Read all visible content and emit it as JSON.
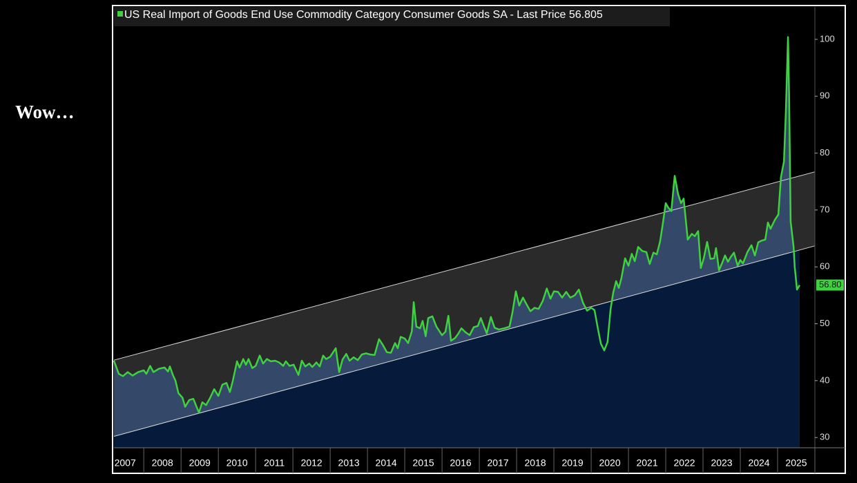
{
  "annotation": "Wow…",
  "chart_data": {
    "type": "line",
    "title": "US Real Import of Goods End Use Commodity Category Consumer Goods SA - Last Price 56.805",
    "xlim": [
      2007.2,
      2026
    ],
    "xticks": [
      {
        "value": 2007.5,
        "label": "2007"
      },
      {
        "value": 2008.5,
        "label": "2008"
      },
      {
        "value": 2009.5,
        "label": "2009"
      },
      {
        "value": 2010.5,
        "label": "2010"
      },
      {
        "value": 2011.5,
        "label": "2011"
      },
      {
        "value": 2012.5,
        "label": "2012"
      },
      {
        "value": 2013.5,
        "label": "2013"
      },
      {
        "value": 2014.5,
        "label": "2014"
      },
      {
        "value": 2015.5,
        "label": "2015"
      },
      {
        "value": 2016.5,
        "label": "2016"
      },
      {
        "value": 2017.5,
        "label": "2017"
      },
      {
        "value": 2018.5,
        "label": "2018"
      },
      {
        "value": 2019.5,
        "label": "2019"
      },
      {
        "value": 2020.5,
        "label": "2020"
      },
      {
        "value": 2021.5,
        "label": "2021"
      },
      {
        "value": 2022.5,
        "label": "2022"
      },
      {
        "value": 2023.5,
        "label": "2023"
      },
      {
        "value": 2024.5,
        "label": "2024"
      },
      {
        "value": 2025.5,
        "label": "2025"
      }
    ],
    "ylim": [
      28.2,
      105.7
    ],
    "yticks": [
      30,
      40,
      50,
      60,
      70,
      80,
      90,
      100
    ],
    "y_axis_side": "right",
    "grid": false,
    "last_value": 56.805,
    "last_value_label": "56.80",
    "channel": {
      "x": [
        2007.2,
        2026
      ],
      "upper": [
        43.6,
        76.7
      ],
      "lower": [
        30.2,
        63.7
      ]
    },
    "series": [
      {
        "name": "US Real Import of Goods End Use Commodity Category Consumer Goods SA",
        "color": "#3fd13f",
        "x": [
          2007.2,
          2007.33,
          2007.44,
          2007.57,
          2007.7,
          2007.85,
          2008.0,
          2008.07,
          2008.17,
          2008.26,
          2008.41,
          2008.56,
          2008.65,
          2008.7,
          2008.78,
          2008.85,
          2008.93,
          2009.04,
          2009.11,
          2009.22,
          2009.33,
          2009.41,
          2009.48,
          2009.57,
          2009.67,
          2009.78,
          2009.89,
          2010.0,
          2010.11,
          2010.22,
          2010.31,
          2010.39,
          2010.5,
          2010.57,
          2010.67,
          2010.74,
          2010.81,
          2010.91,
          2011.0,
          2011.11,
          2011.2,
          2011.3,
          2011.41,
          2011.52,
          2011.63,
          2011.74,
          2011.81,
          2011.91,
          2012.02,
          2012.15,
          2012.24,
          2012.33,
          2012.44,
          2012.52,
          2012.63,
          2012.72,
          2012.81,
          2012.89,
          2013.0,
          2013.15,
          2013.24,
          2013.33,
          2013.43,
          2013.52,
          2013.63,
          2013.74,
          2013.85,
          2013.96,
          2014.07,
          2014.19,
          2014.31,
          2014.41,
          2014.52,
          2014.63,
          2014.74,
          2014.81,
          2014.89,
          2015.0,
          2015.09,
          2015.19,
          2015.24,
          2015.31,
          2015.41,
          2015.48,
          2015.56,
          2015.63,
          2015.74,
          2015.85,
          2016.0,
          2016.09,
          2016.17,
          2016.24,
          2016.35,
          2016.43,
          2016.52,
          2016.63,
          2016.74,
          2016.85,
          2016.96,
          2017.04,
          2017.11,
          2017.2,
          2017.31,
          2017.41,
          2017.52,
          2017.67,
          2017.81,
          2017.89,
          2017.98,
          2018.07,
          2018.17,
          2018.26,
          2018.37,
          2018.48,
          2018.59,
          2018.7,
          2018.81,
          2018.91,
          2019.0,
          2019.11,
          2019.22,
          2019.33,
          2019.44,
          2019.56,
          2019.67,
          2019.78,
          2019.89,
          2020.0,
          2020.09,
          2020.19,
          2020.26,
          2020.35,
          2020.44,
          2020.52,
          2020.59,
          2020.67,
          2020.74,
          2020.81,
          2020.91,
          2021.0,
          2021.09,
          2021.17,
          2021.26,
          2021.37,
          2021.48,
          2021.57,
          2021.67,
          2021.76,
          2021.85,
          2021.93,
          2022.0,
          2022.07,
          2022.15,
          2022.24,
          2022.33,
          2022.41,
          2022.48,
          2022.59,
          2022.7,
          2022.78,
          2022.87,
          2022.94,
          2023.02,
          2023.11,
          2023.2,
          2023.3,
          2023.35,
          2023.43,
          2023.52,
          2023.59,
          2023.67,
          2023.74,
          2023.83,
          2023.93,
          2024.0,
          2024.07,
          2024.19,
          2024.3,
          2024.39,
          2024.48,
          2024.57,
          2024.67,
          2024.74,
          2024.81,
          2024.93,
          2025.02,
          2025.09,
          2025.17,
          2025.22,
          2025.28,
          2025.31,
          2025.35,
          2025.43,
          2025.46,
          2025.52,
          2025.59
        ],
        "values": [
          43.5,
          41.2,
          40.8,
          41.5,
          40.9,
          41.5,
          41.8,
          41.2,
          42.6,
          41.5,
          42.1,
          42.3,
          41.6,
          42.5,
          41.0,
          40.0,
          37.8,
          37.0,
          35.4,
          36.6,
          36.8,
          35.5,
          34.4,
          36.2,
          35.7,
          37.0,
          38.5,
          37.3,
          39.3,
          39.6,
          38.0,
          40.0,
          43.4,
          42.3,
          43.8,
          42.8,
          43.8,
          42.2,
          42.6,
          44.4,
          43.0,
          43.8,
          43.4,
          43.5,
          43.2,
          42.6,
          43.4,
          42.6,
          42.8,
          41.0,
          43.5,
          42.5,
          43.0,
          42.4,
          43.2,
          42.5,
          44.4,
          43.8,
          44.2,
          45.7,
          41.5,
          43.7,
          44.7,
          43.5,
          44.1,
          43.6,
          44.6,
          44.8,
          44.6,
          44.5,
          47.3,
          46.3,
          45.0,
          44.9,
          46.6,
          45.7,
          47.7,
          47.4,
          46.6,
          48.7,
          53.8,
          49.5,
          49.2,
          50.5,
          47.8,
          51.0,
          51.3,
          49.5,
          48.0,
          48.6,
          51.4,
          47.0,
          47.5,
          48.2,
          49.2,
          48.5,
          48.0,
          49.4,
          49.6,
          51.0,
          49.8,
          48.3,
          51.2,
          49.3,
          49.0,
          49.2,
          49.5,
          52.0,
          55.7,
          53.2,
          54.6,
          53.5,
          52.2,
          52.8,
          52.6,
          54.0,
          56.2,
          54.4,
          55.7,
          55.6,
          54.6,
          55.6,
          54.6,
          55.0,
          56.0,
          53.7,
          52.3,
          52.8,
          52.4,
          48.8,
          46.5,
          45.3,
          46.8,
          52.5,
          55.4,
          57.5,
          56.3,
          58.0,
          61.5,
          60.2,
          62.3,
          61.0,
          63.5,
          62.8,
          62.6,
          60.5,
          62.5,
          62.2,
          64.5,
          68.0,
          71.2,
          70.4,
          69.8,
          76.0,
          72.8,
          71.2,
          72.0,
          64.8,
          65.8,
          65.4,
          66.3,
          59.8,
          61.5,
          64.4,
          61.4,
          61.5,
          63.3,
          59.4,
          60.8,
          62.0,
          60.9,
          61.7,
          62.5,
          60.2,
          61.2,
          60.6,
          62.6,
          63.8,
          62.0,
          64.3,
          64.6,
          64.8,
          67.8,
          66.7,
          68.3,
          69.2,
          75.8,
          78.5,
          87.0,
          100.4,
          90.0,
          68.0,
          63.5,
          60.0,
          56.0,
          56.8
        ]
      }
    ]
  }
}
